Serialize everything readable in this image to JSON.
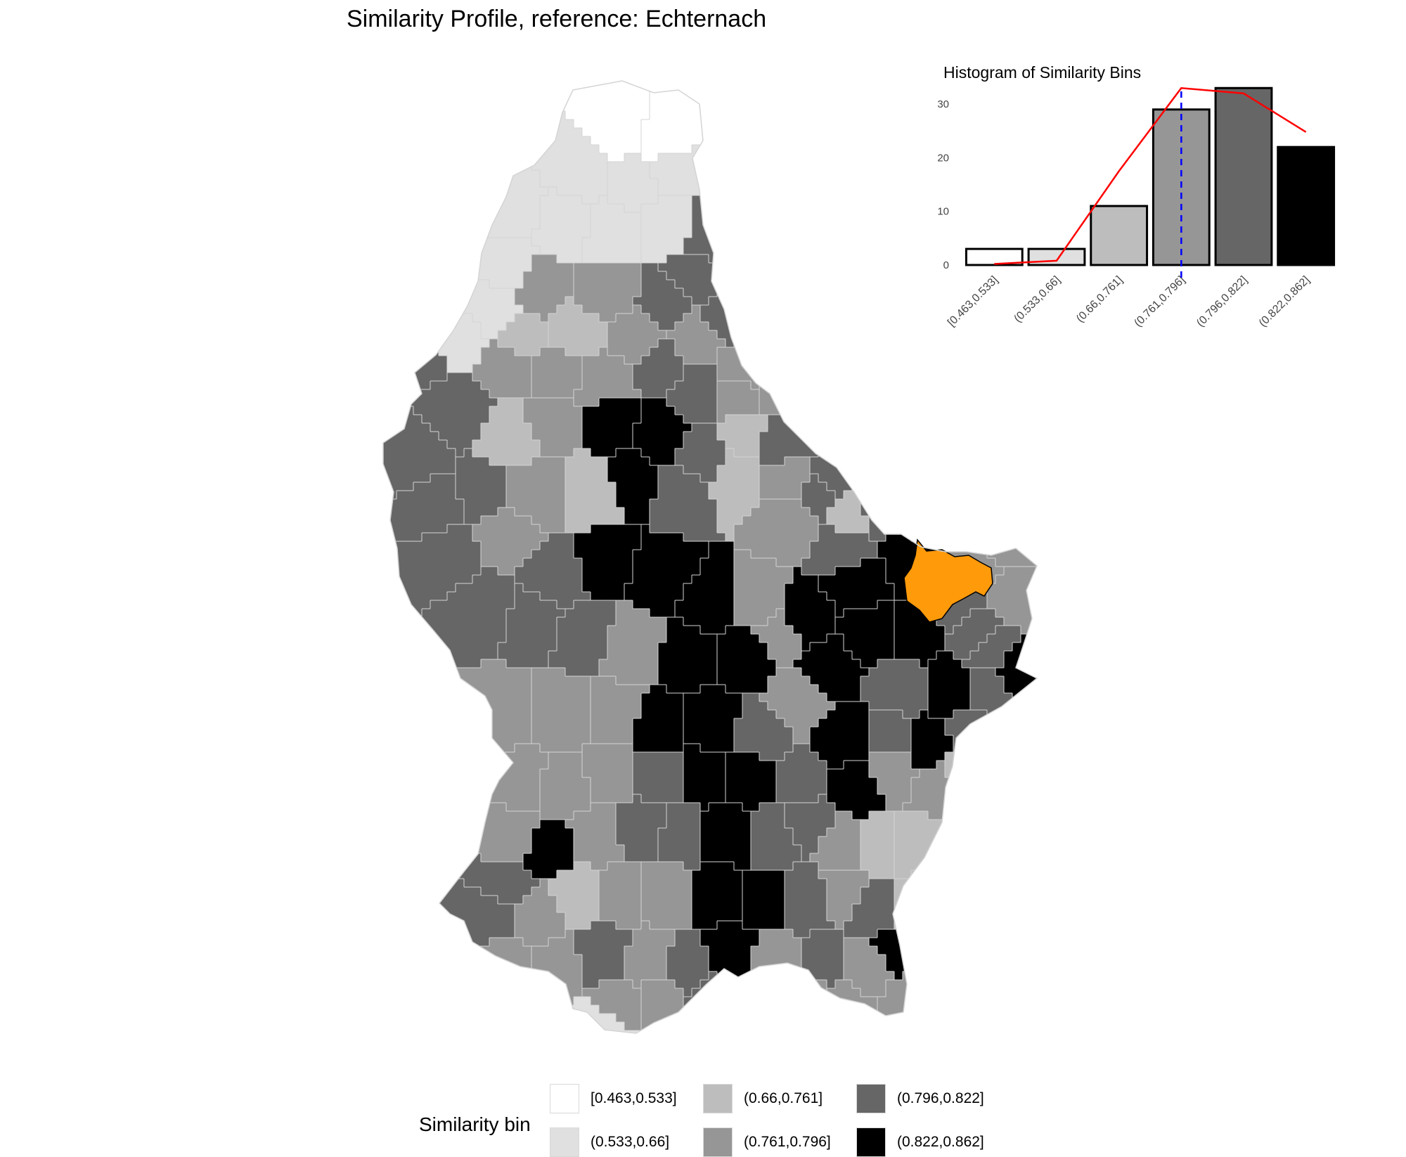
{
  "title": "Similarity Profile, reference: Echternach",
  "colors": {
    "bins": [
      "#ffffff",
      "#e0e0e0",
      "#bdbdbd",
      "#969696",
      "#666666",
      "#000000"
    ],
    "reference": "#ff9a0a",
    "border": "#d4d4d4",
    "line": "#ff0000",
    "reference_line": "#0000ff"
  },
  "map": {
    "reference_region": "Echternach",
    "reference_color": "#ff9a0a"
  },
  "histogram": {
    "title": "Histogram of Similarity Bins"
  },
  "chart_data": {
    "type": "bar",
    "title": "Histogram of Similarity Bins",
    "categories": [
      "[0.463,0.533]",
      "(0.533,0.66]",
      "(0.66,0.761]",
      "(0.761,0.796]",
      "(0.796,0.822]",
      "(0.822,0.862]"
    ],
    "values": [
      3,
      3,
      11,
      29,
      33,
      22
    ],
    "fills": [
      "#ffffff",
      "#e0e0e0",
      "#bdbdbd",
      "#969696",
      "#666666",
      "#000000"
    ],
    "density_line": [
      0.2,
      0.8,
      17.5,
      33,
      32,
      24.8
    ],
    "reference_category": "(0.761,0.796]",
    "yticks": [
      0,
      10,
      20,
      30
    ],
    "ylim": [
      0,
      35
    ],
    "xlabel": "",
    "ylabel": "",
    "grid": false
  },
  "legend": {
    "title": "Similarity bin",
    "items": [
      {
        "label": "[0.463,0.533]",
        "color": "#ffffff"
      },
      {
        "label": "(0.533,0.66]",
        "color": "#e0e0e0"
      },
      {
        "label": "(0.66,0.761]",
        "color": "#bdbdbd"
      },
      {
        "label": "(0.761,0.796]",
        "color": "#969696"
      },
      {
        "label": "(0.796,0.822]",
        "color": "#666666"
      },
      {
        "label": "(0.822,0.862]",
        "color": "#000000"
      }
    ]
  }
}
